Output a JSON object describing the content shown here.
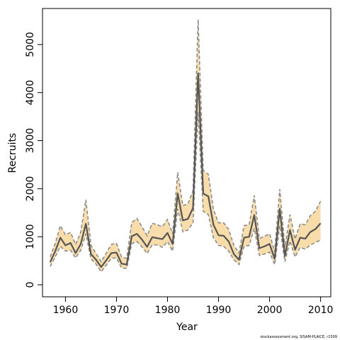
{
  "chart_data": {
    "type": "line",
    "title": "",
    "xlabel": "Year",
    "ylabel": "Recruits",
    "xlim": [
      1955.5,
      2012
    ],
    "ylim": [
      -250,
      5750
    ],
    "xticks": [
      1960,
      1970,
      1980,
      1990,
      2000,
      2010
    ],
    "yticks": [
      0,
      1000,
      2000,
      3000,
      4000,
      5000
    ],
    "grid": false,
    "legend": "none",
    "credit": "stockassessment.org, SISAM-PLAICE, r1509",
    "colors": {
      "estimate": "#555555",
      "band_fill": "#f8dcaa",
      "band_edge": "#8c8c8c"
    },
    "x": [
      1957,
      1958,
      1959,
      1960,
      1961,
      1962,
      1963,
      1964,
      1965,
      1966,
      1967,
      1968,
      1969,
      1970,
      1971,
      1972,
      1973,
      1974,
      1975,
      1976,
      1977,
      1978,
      1979,
      1980,
      1981,
      1982,
      1983,
      1984,
      1985,
      1986,
      1987,
      1988,
      1989,
      1990,
      1991,
      1992,
      1993,
      1994,
      1995,
      1996,
      1997,
      1998,
      1999,
      2000,
      2001,
      2002,
      2003,
      2004,
      2005,
      2006,
      2007,
      2008,
      2009,
      2010
    ],
    "series": [
      {
        "values": [
          470,
          700,
          980,
          820,
          870,
          660,
          850,
          1270,
          640,
          520,
          370,
          510,
          660,
          670,
          440,
          420,
          1010,
          1060,
          940,
          790,
          990,
          970,
          950,
          1080,
          850,
          1900,
          1340,
          1370,
          1600,
          4400,
          1900,
          1840,
          1250,
          1030,
          1020,
          900,
          640,
          520,
          980,
          1000,
          1450,
          760,
          800,
          850,
          540,
          1580,
          600,
          1140,
          730,
          980,
          960,
          1100,
          1160,
          1280
        ]
      },
      {
        "values": [
          380,
          580,
          800,
          700,
          720,
          560,
          720,
          1060,
          540,
          430,
          270,
          410,
          550,
          560,
          350,
          340,
          860,
          900,
          790,
          650,
          830,
          830,
          780,
          900,
          700,
          1580,
          1100,
          1140,
          1290,
          3600,
          1530,
          1460,
          980,
          820,
          800,
          700,
          520,
          420,
          800,
          820,
          1170,
          610,
          640,
          680,
          420,
          1230,
          480,
          910,
          580,
          780,
          740,
          830,
          880,
          930
        ]
      },
      {
        "values": [
          580,
          860,
          1230,
          1040,
          1090,
          840,
          1100,
          1770,
          820,
          650,
          480,
          660,
          840,
          860,
          580,
          550,
          1300,
          1380,
          1210,
          1020,
          1280,
          1250,
          1210,
          1360,
          1060,
          2340,
          1650,
          1680,
          1960,
          5520,
          2380,
          2300,
          1570,
          1290,
          1290,
          1150,
          820,
          660,
          1230,
          1250,
          1860,
          960,
          1010,
          1060,
          690,
          1990,
          780,
          1460,
          950,
          1270,
          1250,
          1440,
          1530,
          1740
        ]
      }
    ]
  }
}
